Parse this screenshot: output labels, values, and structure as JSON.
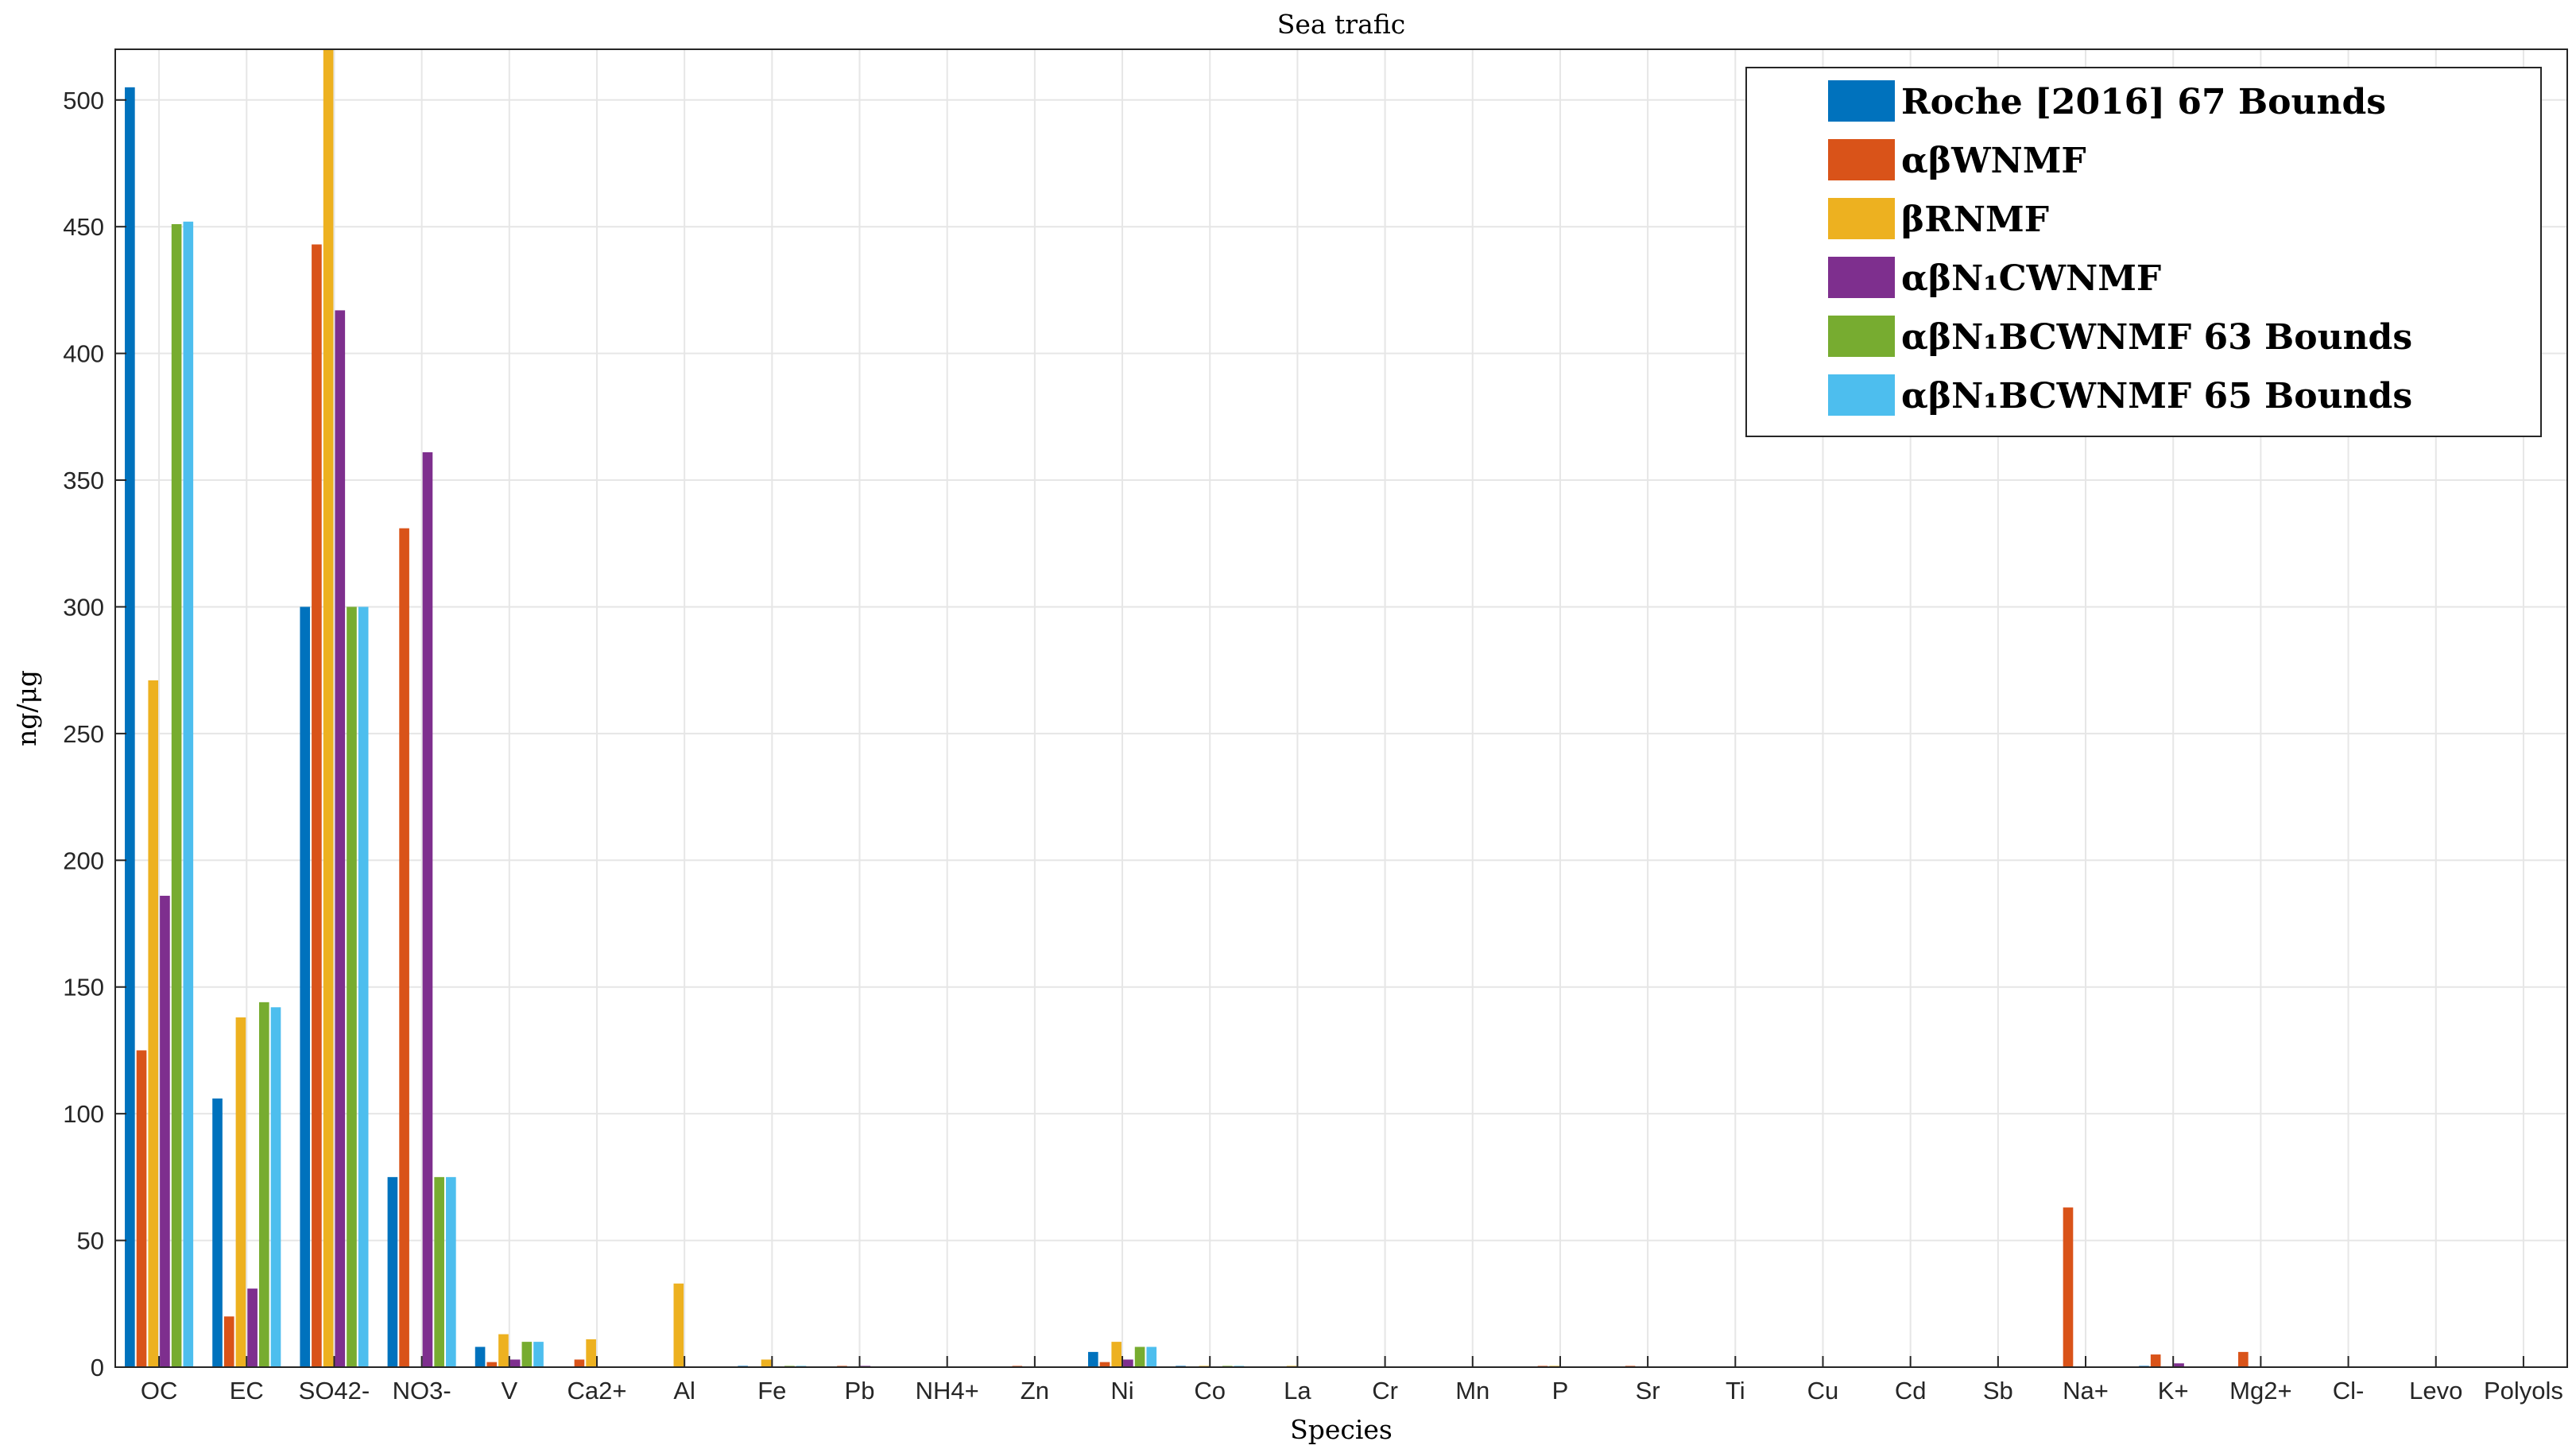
{
  "chart_data": {
    "type": "bar",
    "title": "Sea trafic",
    "xlabel": "Species",
    "ylabel": "ng/μg",
    "ylim": [
      0,
      520
    ],
    "yticks": [
      0,
      50,
      100,
      150,
      200,
      250,
      300,
      350,
      400,
      450,
      500
    ],
    "grid": true,
    "legend_position": "top-right",
    "categories": [
      "OC",
      "EC",
      "SO42-",
      "NO3-",
      "V",
      "Ca2+",
      "Al",
      "Fe",
      "Pb",
      "NH4+",
      "Zn",
      "Ni",
      "Co",
      "La",
      "Cr",
      "Mn",
      "P",
      "Sr",
      "Ti",
      "Cu",
      "Cd",
      "Sb",
      "Na+",
      "K+",
      "Mg2+",
      "Cl-",
      "Levo",
      "Polyols"
    ],
    "series": [
      {
        "name": "Roche [2016] 67 Bounds",
        "color": "#0072BD",
        "values": [
          505,
          106,
          300,
          75,
          8,
          0,
          0,
          0.5,
          0,
          0,
          0,
          6,
          0.5,
          0.3,
          0,
          0,
          0,
          0,
          0,
          0,
          0,
          0,
          0,
          0.5,
          0,
          0,
          0,
          0
        ]
      },
      {
        "name": "αβWNMF",
        "color": "#D95319",
        "values": [
          125,
          20,
          443,
          331,
          2,
          3,
          0,
          0,
          0.5,
          0,
          0.5,
          2,
          0.3,
          0,
          0,
          0,
          0.5,
          0.5,
          0,
          0,
          0,
          0,
          63,
          5,
          6,
          0,
          0,
          0
        ]
      },
      {
        "name": "βRNMF",
        "color": "#EDB120",
        "values": [
          271,
          138,
          520,
          0,
          13,
          11,
          33,
          3,
          0,
          0,
          0,
          10,
          0.5,
          0.5,
          0,
          0,
          0.5,
          0,
          0,
          0,
          0,
          0,
          0,
          0,
          0,
          0,
          0,
          0
        ]
      },
      {
        "name": "αβN₁CWNMF",
        "color": "#7E2F8E",
        "values": [
          186,
          31,
          417,
          361,
          3,
          0,
          0,
          0,
          0.5,
          0,
          0,
          3,
          0,
          0,
          0,
          0,
          0,
          0,
          0,
          0,
          0,
          0,
          0,
          1.5,
          0,
          0,
          0,
          0
        ]
      },
      {
        "name": "αβN₁BCWNMF 63 Bounds",
        "color": "#77AC30",
        "values": [
          451,
          144,
          300,
          75,
          10,
          0,
          0,
          0.5,
          0,
          0,
          0,
          8,
          0.5,
          0.3,
          0,
          0,
          0,
          0,
          0,
          0,
          0,
          0,
          0,
          0,
          0,
          0,
          0,
          0
        ]
      },
      {
        "name": "αβN₁BCWNMF 65 Bounds",
        "color": "#4DBEEE",
        "values": [
          452,
          142,
          300,
          75,
          10,
          0,
          0,
          0.5,
          0,
          0,
          0,
          8,
          0.5,
          0.3,
          0,
          0,
          0,
          0,
          0,
          0,
          0,
          0,
          0,
          0,
          0,
          0,
          0,
          0
        ]
      }
    ]
  }
}
